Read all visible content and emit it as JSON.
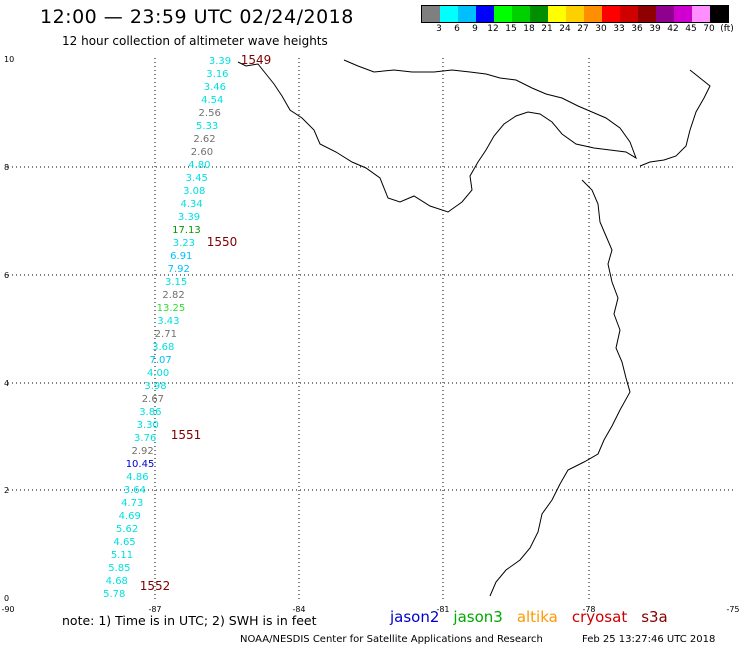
{
  "header": {
    "title": "12:00 — 23:59 UTC 02/24/2018",
    "subtitle": "12 hour collection of altimeter wave heights"
  },
  "colorbar": {
    "colors": [
      "#7f7f7f",
      "#00ffff",
      "#00bfff",
      "#0000ff",
      "#00ff00",
      "#00d000",
      "#008f00",
      "#ffff00",
      "#ffd000",
      "#ff8f00",
      "#ff0000",
      "#cf0000",
      "#8f0000",
      "#8f008f",
      "#cf00cf",
      "#ff8fff",
      "#000000"
    ],
    "labels": [
      "3",
      "6",
      "9",
      "12",
      "15",
      "18",
      "21",
      "24",
      "27",
      "30",
      "33",
      "36",
      "39",
      "42",
      "45",
      "70",
      "(ft)"
    ]
  },
  "map": {
    "x_ticks": [
      "-90",
      "-87",
      "-84",
      "-81",
      "-78",
      "-75"
    ],
    "y_ticks": [
      "0",
      "2",
      "4",
      "6",
      "8",
      "10"
    ],
    "wave_points": [
      {
        "value": "3.39",
        "color": "#00e0e0"
      },
      {
        "value": "3.16",
        "color": "#00e0e0"
      },
      {
        "value": "3.46",
        "color": "#00e0e0"
      },
      {
        "value": "4.54",
        "color": "#00e0e0"
      },
      {
        "value": "2.56",
        "color": "#707070"
      },
      {
        "value": "5.33",
        "color": "#00e0e0"
      },
      {
        "value": "2.62",
        "color": "#707070"
      },
      {
        "value": "2.60",
        "color": "#707070"
      },
      {
        "value": "4.80",
        "color": "#00e0e0"
      },
      {
        "value": "3.45",
        "color": "#00e0e0"
      },
      {
        "value": "3.08",
        "color": "#00e0e0"
      },
      {
        "value": "4.34",
        "color": "#00e0e0"
      },
      {
        "value": "3.39",
        "color": "#00e0e0"
      },
      {
        "value": "17.13",
        "color": "#009900"
      },
      {
        "value": "3.23",
        "color": "#00e0e0"
      },
      {
        "value": "6.91",
        "color": "#00bfff"
      },
      {
        "value": "7.92",
        "color": "#00bfff"
      },
      {
        "value": "3.15",
        "color": "#00e0e0"
      },
      {
        "value": "2.82",
        "color": "#707070"
      },
      {
        "value": "13.25",
        "color": "#33dd33"
      },
      {
        "value": "3.43",
        "color": "#00e0e0"
      },
      {
        "value": "2.71",
        "color": "#707070"
      },
      {
        "value": "3.68",
        "color": "#00e0e0"
      },
      {
        "value": "7.07",
        "color": "#00bfff"
      },
      {
        "value": "4.00",
        "color": "#00e0e0"
      },
      {
        "value": "3.98",
        "color": "#00e0e0"
      },
      {
        "value": "2.67",
        "color": "#707070"
      },
      {
        "value": "3.86",
        "color": "#00e0e0"
      },
      {
        "value": "3.30",
        "color": "#00e0e0"
      },
      {
        "value": "3.76",
        "color": "#00e0e0"
      },
      {
        "value": "2.92",
        "color": "#707070"
      },
      {
        "value": "10.45",
        "color": "#0000cc"
      },
      {
        "value": "4.86",
        "color": "#00e0e0"
      },
      {
        "value": "3.64",
        "color": "#00e0e0"
      },
      {
        "value": "4.73",
        "color": "#00e0e0"
      },
      {
        "value": "4.69",
        "color": "#00e0e0"
      },
      {
        "value": "5.62",
        "color": "#00e0e0"
      },
      {
        "value": "4.65",
        "color": "#00e0e0"
      },
      {
        "value": "5.11",
        "color": "#00e0e0"
      },
      {
        "value": "5.85",
        "color": "#00e0e0"
      },
      {
        "value": "4.68",
        "color": "#00e0e0"
      },
      {
        "value": "5.78",
        "color": "#00e0e0"
      }
    ],
    "time_labels": [
      "1549",
      "1550",
      "1551",
      "1552"
    ],
    "time_color": "#800000"
  },
  "footer": {
    "note": "note: 1) Time is in UTC; 2) SWH is in feet",
    "legend": [
      {
        "name": "jason2",
        "color": "#0000cc"
      },
      {
        "name": "jason3",
        "color": "#00aa00"
      },
      {
        "name": "altika",
        "color": "#ff9900"
      },
      {
        "name": "cryosat",
        "color": "#cc0000"
      },
      {
        "name": "s3a",
        "color": "#880000"
      }
    ],
    "credit": "NOAA/NESDIS Center for Satellite Applications and Research",
    "timestamp": "Feb 25 13:27:46 UTC 2018"
  }
}
